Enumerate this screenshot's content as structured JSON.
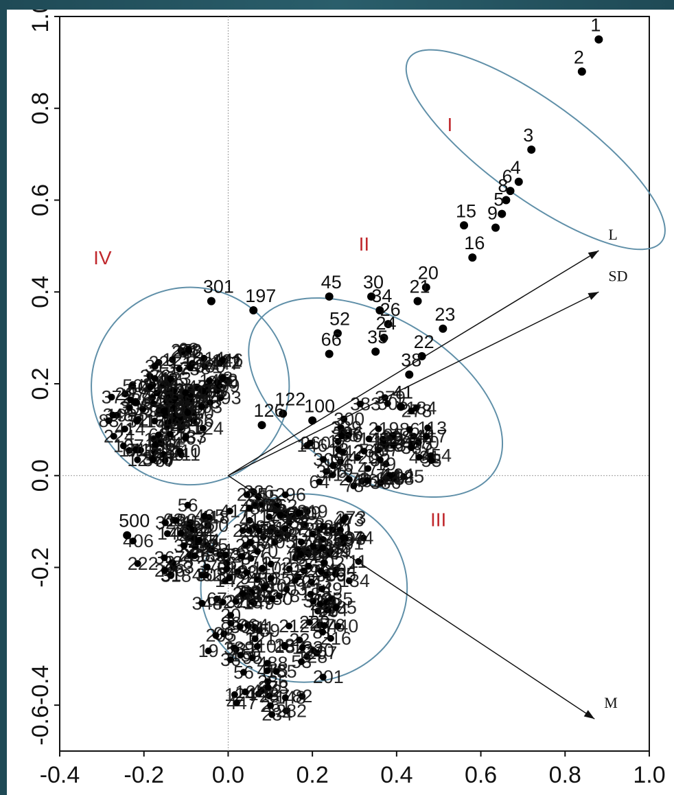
{
  "chart_data": {
    "type": "scatter",
    "title": "",
    "xlabel": "",
    "ylabel": "",
    "xlim": [
      -0.4,
      1.0
    ],
    "ylim": [
      -0.6,
      1.0
    ],
    "x_ticks": [
      "-0.4",
      "-0.2",
      "0.0",
      "0.2",
      "0.4",
      "0.6",
      "0.8",
      "1.0"
    ],
    "y_ticks": [
      "-0.6-0.4",
      "-0.2",
      "0.0",
      "0.2",
      "0.4",
      "0.6",
      "0.8",
      "1.0"
    ],
    "y_tick_values": [
      -0.5,
      -0.2,
      0.0,
      0.2,
      0.4,
      0.6,
      0.8,
      1.0
    ],
    "reference_lines": {
      "x": 0,
      "y": 0
    },
    "grid": false,
    "group_color": "#c0282d",
    "ellipse_color": "#5f8fa8",
    "groups": [
      {
        "name": "I",
        "center": [
          0.73,
          0.71
        ],
        "rx": 0.115,
        "ry": 0.34,
        "angle": -54
      },
      {
        "name": "II",
        "center": [
          0.35,
          0.17
        ],
        "rx": 0.19,
        "ry": 0.305,
        "angle": -59
      },
      {
        "name": "III",
        "center": [
          0.18,
          -0.245
        ],
        "rx": 0.245,
        "ry": 0.205,
        "angle": 0
      },
      {
        "name": "IV",
        "center": [
          -0.09,
          0.195
        ],
        "rx": 0.235,
        "ry": 0.215,
        "angle": -20
      }
    ],
    "group_labels": [
      {
        "text": "I",
        "x": 0.52,
        "y": 0.75
      },
      {
        "text": "II",
        "x": 0.31,
        "y": 0.49
      },
      {
        "text": "III",
        "x": 0.48,
        "y": -0.11
      },
      {
        "text": "IV",
        "x": -0.32,
        "y": 0.46
      }
    ],
    "vectors": [
      {
        "name": "L",
        "x": 0.88,
        "y": 0.49
      },
      {
        "name": "SD",
        "x": 0.88,
        "y": 0.4
      },
      {
        "name": "M",
        "x": 0.87,
        "y": -0.53
      }
    ],
    "points": [
      {
        "label": "1",
        "x": 0.88,
        "y": 0.95
      },
      {
        "label": "2",
        "x": 0.84,
        "y": 0.88
      },
      {
        "label": "3",
        "x": 0.72,
        "y": 0.71
      },
      {
        "label": "4",
        "x": 0.69,
        "y": 0.64
      },
      {
        "label": "6",
        "x": 0.67,
        "y": 0.62
      },
      {
        "label": "8",
        "x": 0.66,
        "y": 0.6
      },
      {
        "label": "5",
        "x": 0.65,
        "y": 0.57
      },
      {
        "label": "15",
        "x": 0.56,
        "y": 0.545
      },
      {
        "label": "9",
        "x": 0.635,
        "y": 0.54
      },
      {
        "label": "16",
        "x": 0.58,
        "y": 0.475
      },
      {
        "label": "20",
        "x": 0.47,
        "y": 0.41
      },
      {
        "label": "21",
        "x": 0.45,
        "y": 0.38
      },
      {
        "label": "45",
        "x": 0.24,
        "y": 0.39
      },
      {
        "label": "30",
        "x": 0.34,
        "y": 0.39
      },
      {
        "label": "34",
        "x": 0.36,
        "y": 0.36
      },
      {
        "label": "52",
        "x": 0.26,
        "y": 0.31
      },
      {
        "label": "26",
        "x": 0.38,
        "y": 0.33
      },
      {
        "label": "24",
        "x": 0.37,
        "y": 0.3
      },
      {
        "label": "23",
        "x": 0.51,
        "y": 0.32
      },
      {
        "label": "66",
        "x": 0.24,
        "y": 0.265
      },
      {
        "label": "35",
        "x": 0.35,
        "y": 0.27
      },
      {
        "label": "22",
        "x": 0.46,
        "y": 0.26
      },
      {
        "label": "38",
        "x": 0.43,
        "y": 0.22
      },
      {
        "label": "122",
        "x": 0.13,
        "y": 0.135
      },
      {
        "label": "126",
        "x": 0.08,
        "y": 0.11
      },
      {
        "label": "100",
        "x": 0.2,
        "y": 0.12
      },
      {
        "label": "41",
        "x": 0.41,
        "y": 0.15
      },
      {
        "label": "197",
        "x": 0.06,
        "y": 0.36
      },
      {
        "label": "301",
        "x": -0.04,
        "y": 0.38
      },
      {
        "label": "60",
        "x": -0.22,
        "y": 0.16
      },
      {
        "label": "500",
        "x": -0.24,
        "y": -0.13
      }
    ]
  }
}
